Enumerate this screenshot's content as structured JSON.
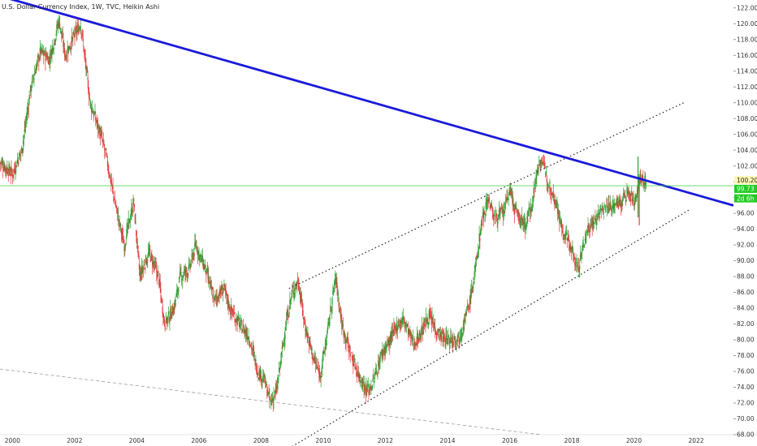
{
  "chart_data": {
    "type": "candlestick",
    "title": "U.S. Dollar Currency Index, 1W, TVC, Heikin Ashi",
    "x_ticks": [
      "2000",
      "2002",
      "2004",
      "2006",
      "2008",
      "2010",
      "2012",
      "2014",
      "2016",
      "2018",
      "2020",
      "2022"
    ],
    "y_ticks": [
      "68.00",
      "70.00",
      "72.00",
      "74.00",
      "76.00",
      "78.00",
      "80.00",
      "82.00",
      "84.00",
      "86.00",
      "88.00",
      "90.00",
      "92.00",
      "94.00",
      "96.00",
      "98.00",
      "100.00",
      "102.00",
      "104.00",
      "106.00",
      "108.00",
      "110.00",
      "112.00",
      "114.00",
      "116.00",
      "118.00",
      "120.00",
      "122.00"
    ],
    "ylim": [
      68,
      123
    ],
    "xlim": [
      1999.6,
      2023.2
    ],
    "price_path": [
      [
        1999.6,
        102.5
      ],
      [
        2000.0,
        101.0
      ],
      [
        2000.3,
        104.0
      ],
      [
        2000.6,
        112.0
      ],
      [
        2000.9,
        116.5
      ],
      [
        2001.2,
        115.5
      ],
      [
        2001.5,
        120.5
      ],
      [
        2001.7,
        116.0
      ],
      [
        2002.0,
        118.5
      ],
      [
        2002.2,
        120.0
      ],
      [
        2002.5,
        110.0
      ],
      [
        2002.8,
        106.5
      ],
      [
        2003.0,
        103.5
      ],
      [
        2003.2,
        99.5
      ],
      [
        2003.4,
        95.5
      ],
      [
        2003.6,
        92.0
      ],
      [
        2003.9,
        97.5
      ],
      [
        2004.1,
        88.0
      ],
      [
        2004.4,
        91.0
      ],
      [
        2004.7,
        88.0
      ],
      [
        2004.9,
        82.0
      ],
      [
        2005.2,
        84.0
      ],
      [
        2005.4,
        88.0
      ],
      [
        2005.7,
        89.0
      ],
      [
        2005.9,
        92.0
      ],
      [
        2006.2,
        89.0
      ],
      [
        2006.5,
        85.0
      ],
      [
        2006.8,
        86.5
      ],
      [
        2007.0,
        84.0
      ],
      [
        2007.3,
        82.0
      ],
      [
        2007.6,
        80.5
      ],
      [
        2007.9,
        76.0
      ],
      [
        2008.1,
        75.0
      ],
      [
        2008.3,
        72.0
      ],
      [
        2008.5,
        73.5
      ],
      [
        2008.8,
        82.0
      ],
      [
        2009.0,
        86.0
      ],
      [
        2009.2,
        87.5
      ],
      [
        2009.4,
        82.0
      ],
      [
        2009.7,
        77.5
      ],
      [
        2009.9,
        75.5
      ],
      [
        2010.1,
        80.0
      ],
      [
        2010.4,
        88.0
      ],
      [
        2010.6,
        82.0
      ],
      [
        2010.9,
        78.0
      ],
      [
        2011.1,
        76.0
      ],
      [
        2011.4,
        73.5
      ],
      [
        2011.6,
        74.5
      ],
      [
        2011.9,
        78.5
      ],
      [
        2012.1,
        79.5
      ],
      [
        2012.4,
        82.0
      ],
      [
        2012.6,
        82.5
      ],
      [
        2012.9,
        79.5
      ],
      [
        2013.1,
        80.5
      ],
      [
        2013.4,
        83.0
      ],
      [
        2013.6,
        81.5
      ],
      [
        2013.9,
        80.0
      ],
      [
        2014.1,
        80.0
      ],
      [
        2014.4,
        80.5
      ],
      [
        2014.7,
        84.5
      ],
      [
        2014.9,
        89.0
      ],
      [
        2015.1,
        95.0
      ],
      [
        2015.3,
        98.0
      ],
      [
        2015.5,
        95.5
      ],
      [
        2015.8,
        96.0
      ],
      [
        2016.0,
        99.0
      ],
      [
        2016.2,
        96.0
      ],
      [
        2016.5,
        94.5
      ],
      [
        2016.7,
        97.0
      ],
      [
        2016.9,
        101.5
      ],
      [
        2017.0,
        103.0
      ],
      [
        2017.2,
        100.5
      ],
      [
        2017.5,
        97.5
      ],
      [
        2017.7,
        93.5
      ],
      [
        2017.9,
        92.5
      ],
      [
        2018.1,
        90.0
      ],
      [
        2018.2,
        89.0
      ],
      [
        2018.5,
        94.0
      ],
      [
        2018.8,
        95.5
      ],
      [
        2019.0,
        96.5
      ],
      [
        2019.3,
        97.0
      ],
      [
        2019.6,
        97.5
      ],
      [
        2019.8,
        98.5
      ],
      [
        2020.0,
        97.5
      ],
      [
        2020.2,
        100.5
      ],
      [
        2020.4,
        99.8
      ]
    ],
    "lines": [
      {
        "name": "trend-top",
        "color": "#1a1adb",
        "style": "solid",
        "from": [
          1999.6,
          123.5
        ],
        "to": [
          2023.2,
          97.0
        ]
      },
      {
        "name": "channel-upper",
        "color": "#222222",
        "style": "dotted",
        "from": [
          2008.9,
          86.5
        ],
        "to": [
          2021.6,
          110.0
        ]
      },
      {
        "name": "channel-lower",
        "color": "#222222",
        "style": "dotted",
        "from": [
          2009.0,
          66.5
        ],
        "to": [
          2021.8,
          96.5
        ]
      },
      {
        "name": "long-support",
        "color": "#9a9a9a",
        "style": "dashed",
        "from": [
          1999.6,
          76.3
        ],
        "to": [
          2017.0,
          68.0
        ]
      },
      {
        "name": "horizontal-level",
        "color": "#44cc44",
        "style": "solid",
        "from": [
          1999.6,
          99.5
        ],
        "to": [
          2023.2,
          99.5
        ]
      }
    ],
    "price_tags": [
      {
        "label": "100.20",
        "value": 100.2,
        "bg": "#fff6b0",
        "fg": "#222222"
      },
      {
        "label": "99.73",
        "value": 99.1,
        "bg": "#22cc22",
        "fg": "#ffffff"
      },
      {
        "label": "2d 6h",
        "value": 97.9,
        "bg": "#22cc22",
        "fg": "#ffffff"
      }
    ],
    "colors": {
      "up": "#2e9e2e",
      "down": "#e23b3b"
    }
  }
}
